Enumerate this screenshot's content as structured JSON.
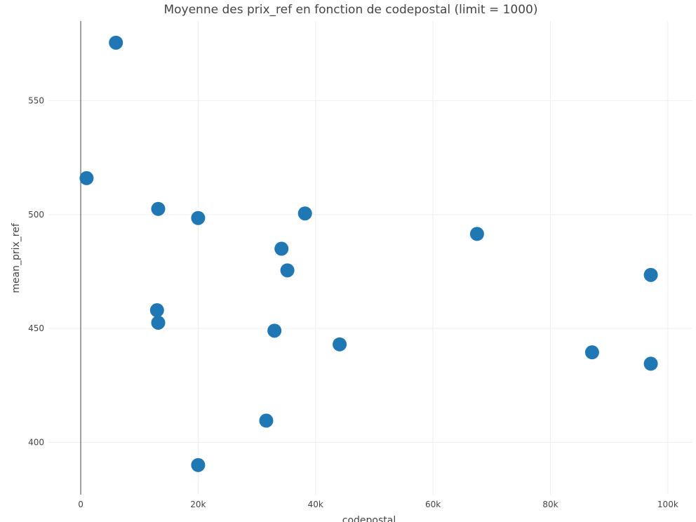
{
  "chart_data": {
    "type": "scatter",
    "title": "Moyenne des prix_ref en fonction de codepostal (limit = 1000)",
    "xlabel": "codepostal",
    "ylabel": "mean_prix_ref",
    "xlim": [
      -5500,
      104200
    ],
    "ylim": [
      377,
      585
    ],
    "x_ticks": [
      0,
      20000,
      40000,
      60000,
      80000,
      100000
    ],
    "x_tick_labels": [
      "0",
      "20k",
      "40k",
      "60k",
      "80k",
      "100k"
    ],
    "y_ticks": [
      400,
      450,
      500,
      550
    ],
    "y_tick_labels": [
      "400",
      "450",
      "500",
      "550"
    ],
    "marker_color": "#1f77b4",
    "grid": true,
    "points": [
      {
        "x": 6000,
        "y": 575.5
      },
      {
        "x": 1000,
        "y": 516
      },
      {
        "x": 13200,
        "y": 502.5
      },
      {
        "x": 20000,
        "y": 498.5
      },
      {
        "x": 38200,
        "y": 500.5
      },
      {
        "x": 34200,
        "y": 485
      },
      {
        "x": 35200,
        "y": 475.5
      },
      {
        "x": 67500,
        "y": 491.5
      },
      {
        "x": 97100,
        "y": 473.5
      },
      {
        "x": 13000,
        "y": 458
      },
      {
        "x": 13200,
        "y": 452.5
      },
      {
        "x": 33000,
        "y": 449
      },
      {
        "x": 44100,
        "y": 443
      },
      {
        "x": 87100,
        "y": 439.5
      },
      {
        "x": 97100,
        "y": 434.5
      },
      {
        "x": 31600,
        "y": 409.5
      },
      {
        "x": 20000,
        "y": 390
      }
    ]
  }
}
